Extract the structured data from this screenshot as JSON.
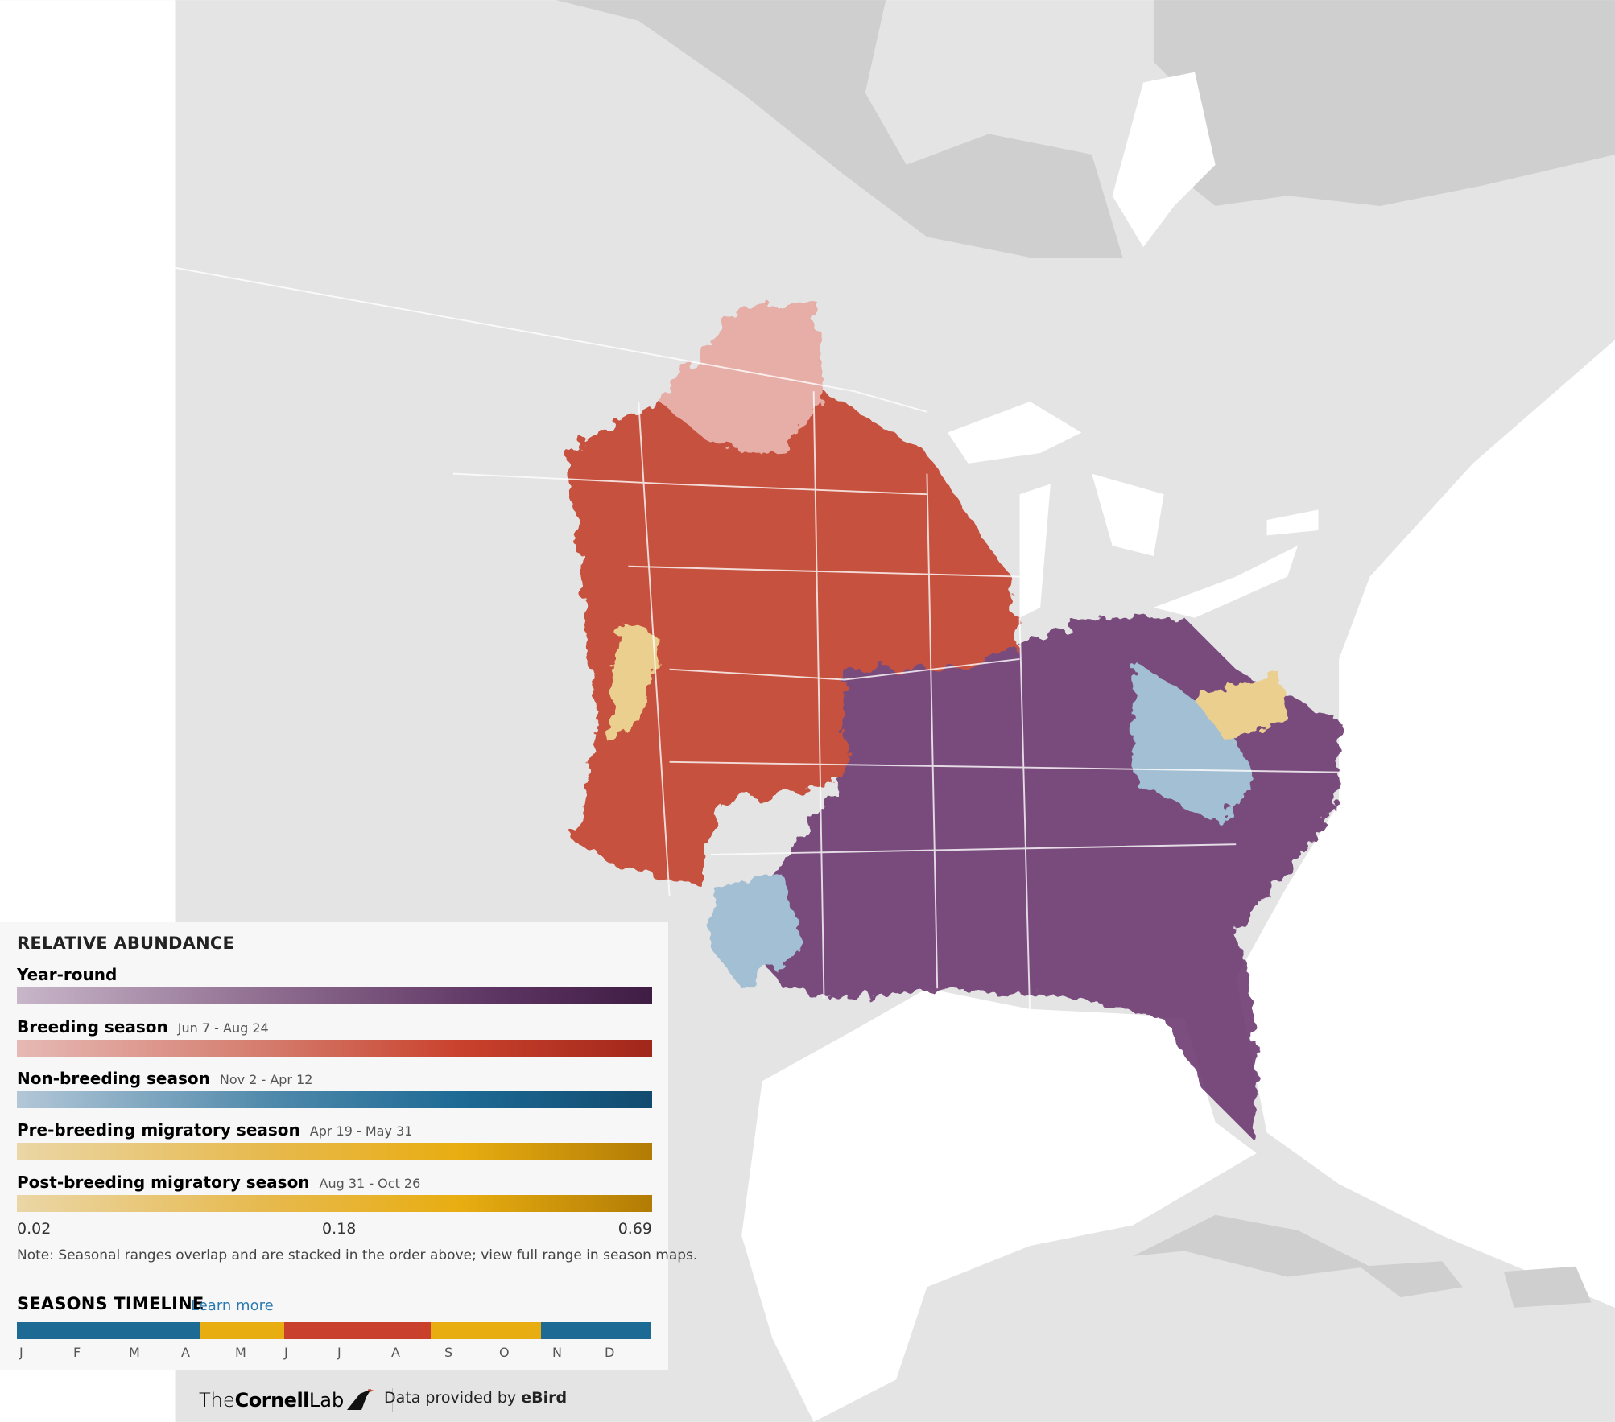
{
  "legend": {
    "title": "RELATIVE ABUNDANCE",
    "rows": [
      {
        "name": "Year-round"
      },
      {
        "name": "Breeding season",
        "dates": "Jun 7 - Aug 24"
      },
      {
        "name": "Non-breeding season",
        "dates": "Nov 2 - Apr 12"
      },
      {
        "name": "Pre-breeding migratory season",
        "dates": "Apr 19 - May 31"
      },
      {
        "name": "Post-breeding migratory season",
        "dates": "Aug 31 - Oct 26"
      }
    ],
    "scale": [
      0.02,
      0.18,
      0.69
    ],
    "note": "Note: Seasonal ranges overlap and are stacked in the order above; view full range in season maps."
  },
  "timeline": {
    "title": "SEASONS TIMELINE",
    "link": "Learn more",
    "months": [
      "J",
      "F",
      "M",
      "A",
      "M",
      "J",
      "J",
      "A",
      "S",
      "O",
      "N",
      "D"
    ]
  },
  "footer": {
    "brand": [
      "The",
      "Cornell",
      "Lab"
    ],
    "credit": "Data provided by",
    "source": "eBird"
  }
}
